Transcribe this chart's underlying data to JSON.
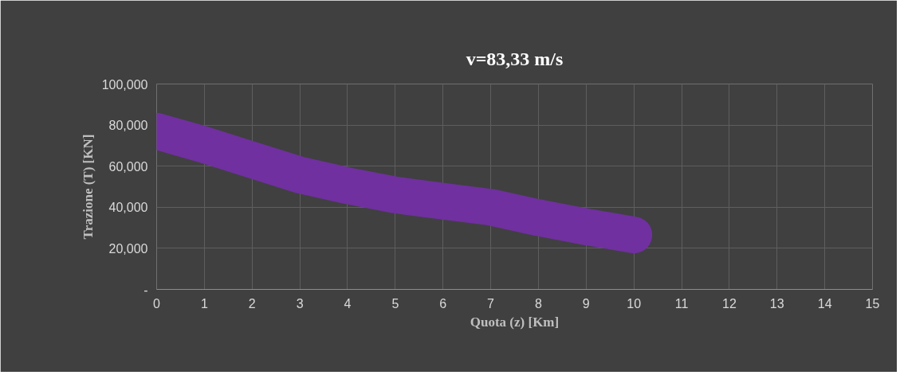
{
  "chart_data": {
    "type": "line",
    "title": "v=83,33 m/s",
    "xlabel": "Quota (z) [Km]",
    "ylabel": "Trazione (T) [KN]",
    "x": [
      0,
      1,
      2,
      3,
      4,
      5,
      6,
      7,
      8,
      9,
      10
    ],
    "series": [
      {
        "color": "#7030a0",
        "values": [
          77000,
          70400,
          63000,
          55700,
          50500,
          46000,
          42900,
          40000,
          34900,
          30500,
          26500
        ]
      }
    ],
    "xlim": [
      0,
      15
    ],
    "xticks": [
      0,
      1,
      2,
      3,
      4,
      5,
      6,
      7,
      8,
      9,
      10,
      11,
      12,
      13,
      14,
      15
    ],
    "ylim": [
      0,
      100000
    ],
    "yticks": [
      {
        "value": 0,
        "label": "-"
      },
      {
        "value": 20000,
        "label": "20,000"
      },
      {
        "value": 40000,
        "label": "40,000"
      },
      {
        "value": 60000,
        "label": "60,000"
      },
      {
        "value": 80000,
        "label": "80,000"
      },
      {
        "value": 100000,
        "label": "100,000"
      }
    ],
    "grid": true,
    "marker": "none",
    "line_style": "solid"
  }
}
